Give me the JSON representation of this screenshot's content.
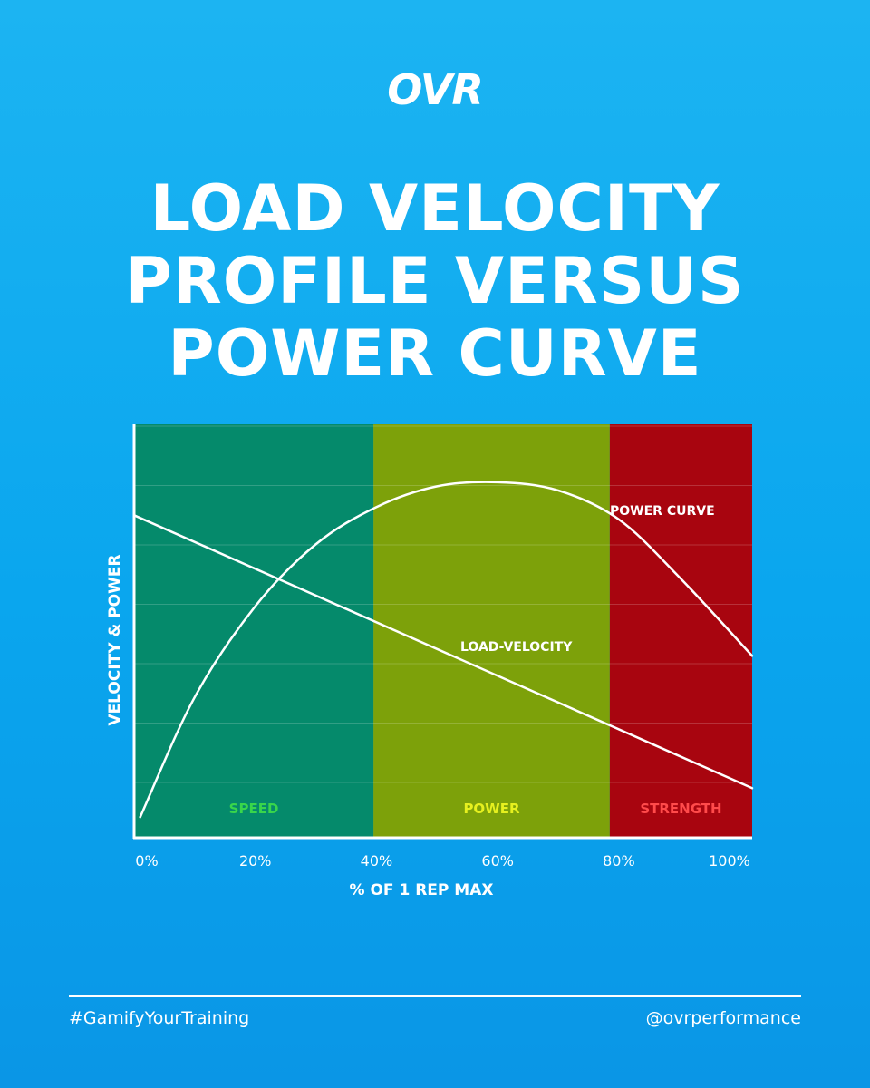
{
  "brand": {
    "logo": "OVR"
  },
  "title_lines": [
    "LOAD VELOCITY",
    "PROFILE VERSUS",
    "POWER CURVE"
  ],
  "footer": {
    "hashtag": "#GamifyYourTraining",
    "handle": "@ovrperformance"
  },
  "chart_data": {
    "type": "line",
    "title": "LOAD VELOCITY PROFILE VERSUS POWER CURVE",
    "xlabel": "% OF 1 REP MAX",
    "ylabel": "VELOCITY & POWER",
    "xlim": [
      0,
      100
    ],
    "ylim": [
      0,
      100
    ],
    "x_ticks": [
      "0%",
      "20%",
      "40%",
      "60%",
      "80%",
      "100%"
    ],
    "x_tick_values": [
      0,
      20,
      40,
      60,
      80,
      100
    ],
    "grid": true,
    "zones": [
      {
        "label": "SPEED",
        "start": 0,
        "end": 39.5,
        "color": "#058a6b",
        "label_color": "#39d64b"
      },
      {
        "label": "POWER",
        "start": 39.5,
        "end": 78.5,
        "color": "#7da10a",
        "label_color": "#e6f01f"
      },
      {
        "label": "STRENGTH",
        "start": 78.5,
        "end": 103,
        "color": "#a8050f",
        "label_color": "#ff4b4b"
      }
    ],
    "series": [
      {
        "name": "POWER CURVE",
        "x": [
          1,
          10,
          20,
          30,
          40,
          50,
          60,
          70,
          80,
          90,
          102
        ],
        "y": [
          5,
          34,
          56,
          71,
          80,
          85,
          86,
          84,
          77,
          63,
          44
        ]
      },
      {
        "name": "LOAD-VELOCITY",
        "x": [
          0,
          102
        ],
        "y": [
          78,
          12
        ]
      }
    ]
  }
}
